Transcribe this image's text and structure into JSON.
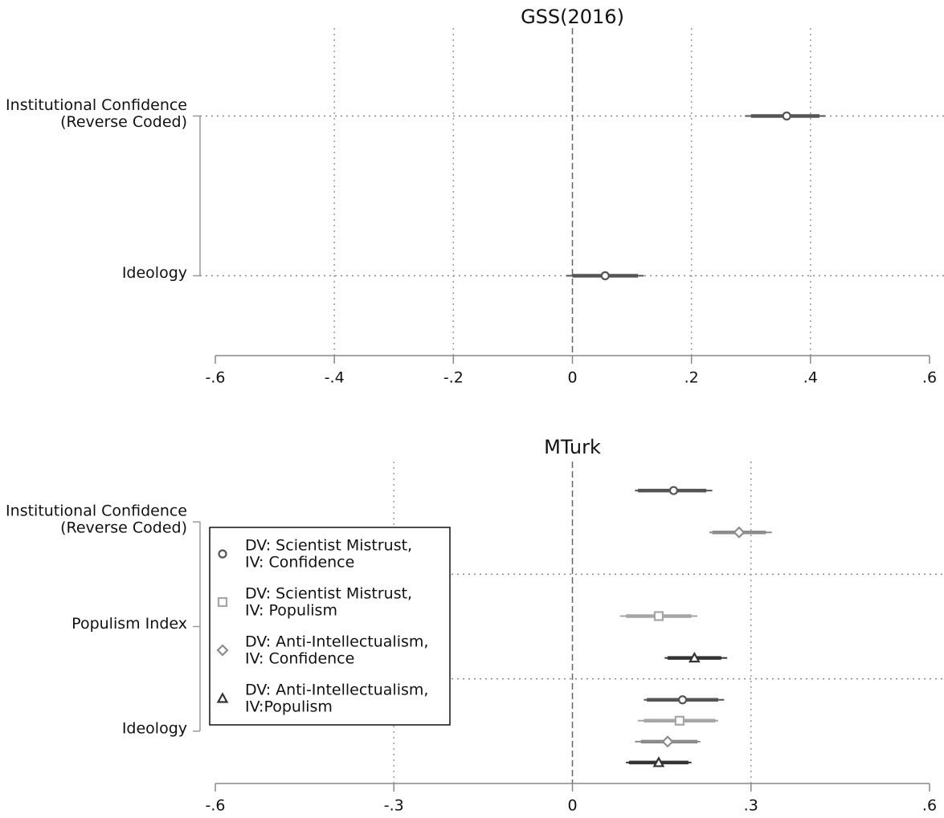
{
  "chart_data": [
    {
      "type": "coefplot",
      "title": "GSS(2016)",
      "categories": [
        "Institutional Confidence\n(Reverse Coded)",
        "Ideology"
      ],
      "series": [
        {
          "color": "#555555",
          "marker": "circle",
          "values": [
            0.36,
            0.055
          ],
          "ci_inner": [
            [
              0.3,
              0.415
            ],
            [
              0,
              0.11
            ]
          ],
          "ci_outer": [
            [
              0.29,
              0.425
            ],
            [
              -0.01,
              0.12
            ]
          ]
        }
      ],
      "xlim": [
        -0.6,
        0.6
      ],
      "xticks": [
        {
          "value": -0.6,
          "label": "-.6"
        },
        {
          "value": -0.4,
          "label": "-.4"
        },
        {
          "value": -0.2,
          "label": "-.2"
        },
        0,
        {
          "value": 0.2,
          "label": ".2"
        },
        {
          "value": 0.4,
          "label": ".4"
        },
        {
          "value": 0.6,
          "label": ".6"
        }
      ],
      "grid": true
    },
    {
      "type": "coefplot",
      "title": "MTurk",
      "categories": [
        "Institutional Confidence\n(Reverse Coded)",
        "Populism Index",
        "Ideology"
      ],
      "series": [
        {
          "name": "DV: Scientist Mistrust,\nIV: Confidence",
          "color": "#555555",
          "marker": "circle",
          "values": [
            0.17,
            null,
            0.185
          ],
          "ci_inner": [
            [
              0.11,
              0.225
            ],
            null,
            [
              0.125,
              0.245
            ]
          ],
          "ci_outer": [
            [
              0.105,
              0.235
            ],
            null,
            [
              0.12,
              0.255
            ]
          ]
        },
        {
          "name": "DV: Scientist Mistrust,\nIV: Populism",
          "color": "#a6a6a6",
          "marker": "square",
          "values": [
            null,
            0.145,
            0.18
          ],
          "ci_inner": [
            null,
            [
              0.09,
              0.2
            ],
            [
              0.12,
              0.24
            ]
          ],
          "ci_outer": [
            null,
            [
              0.08,
              0.21
            ],
            [
              0.11,
              0.245
            ]
          ]
        },
        {
          "name": "DV: Anti-Intellectualism,\nIV: Confidence",
          "color": "#8c8c8c",
          "marker": "diamond",
          "values": [
            0.28,
            null,
            0.16
          ],
          "ci_inner": [
            [
              0.235,
              0.325
            ],
            null,
            [
              0.115,
              0.21
            ]
          ],
          "ci_outer": [
            [
              0.23,
              0.335
            ],
            null,
            [
              0.105,
              0.215
            ]
          ]
        },
        {
          "name": "DV: Anti-Intellectualism,\nIV:Populism",
          "color": "#333333",
          "marker": "triangle",
          "values": [
            null,
            0.205,
            0.145
          ],
          "ci_inner": [
            null,
            [
              0.16,
              0.25
            ],
            [
              0.095,
              0.195
            ]
          ],
          "ci_outer": [
            null,
            [
              0.155,
              0.26
            ],
            [
              0.09,
              0.2
            ]
          ]
        }
      ],
      "xlim": [
        -0.6,
        0.6
      ],
      "xticks": [
        {
          "value": -0.6,
          "label": "-.6"
        },
        {
          "value": -0.3,
          "label": "-.3"
        },
        0,
        {
          "value": 0.3,
          "label": ".3"
        },
        {
          "value": 0.6,
          "label": ".6"
        }
      ],
      "grid": true,
      "legend": "left"
    }
  ]
}
